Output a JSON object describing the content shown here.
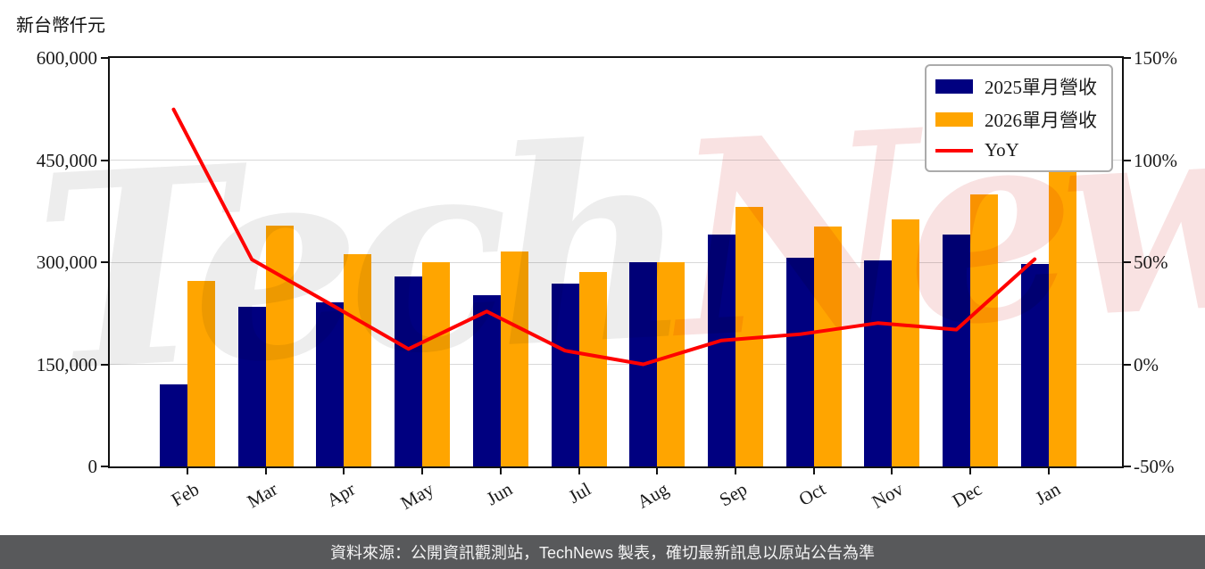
{
  "page": {
    "unit_label": "新台幣仟元",
    "footer_text": "資料來源：公開資訊觀測站，TechNews 製表，確切最新訊息以原站公告為準",
    "footer_bg": "#58595b",
    "watermark_left": "Tech",
    "watermark_right": "News",
    "watermark_left_color": "#ededed",
    "watermark_right_color": "#f9e2e2"
  },
  "chart_data": {
    "type": "bar",
    "title": "新台幣仟元",
    "categories": [
      "Feb",
      "Mar",
      "Apr",
      "May",
      "Jun",
      "Jul",
      "Aug",
      "Sep",
      "Oct",
      "Nov",
      "Dec",
      "Jan"
    ],
    "series": [
      {
        "name": "2025單月營收",
        "type": "bar",
        "axis": "left",
        "color": "#000080",
        "values": [
          121000,
          234000,
          241000,
          279000,
          251000,
          268000,
          300000,
          341000,
          307000,
          302000,
          341000,
          297000
        ]
      },
      {
        "name": "2026單月營收",
        "type": "bar",
        "axis": "left",
        "color": "#FFA500",
        "values": [
          272000,
          354000,
          312000,
          300000,
          316000,
          286000,
          300000,
          381000,
          352000,
          363000,
          399000,
          450000
        ]
      },
      {
        "name": "YoY",
        "type": "line",
        "axis": "right",
        "color": "#FF0000",
        "values_percent": [
          124.8,
          51.3,
          29.5,
          7.5,
          25.9,
          6.7,
          0.0,
          11.7,
          14.7,
          20.2,
          17.0,
          51.5
        ]
      }
    ],
    "left_axis": {
      "title": "新台幣仟元",
      "min": 0,
      "max": 600000,
      "tick_labels": [
        "600,000",
        "450,000",
        "300,000",
        "150,000",
        "0"
      ]
    },
    "right_axis": {
      "min": -50,
      "max": 150,
      "tick_labels": [
        "150%",
        "100%",
        "50%",
        "0%",
        "-50%"
      ]
    },
    "grid": true,
    "legend_position": "top-right"
  }
}
